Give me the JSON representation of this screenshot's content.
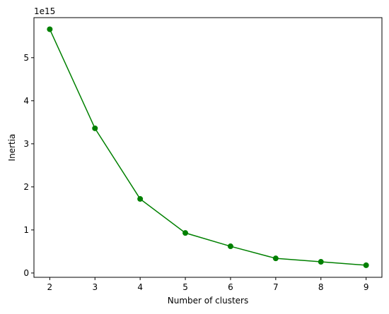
{
  "chart_data": {
    "type": "line",
    "x_label": "Number of clusters",
    "y_label": "Inertia",
    "y_offset_label": "1e15",
    "x": [
      2,
      3,
      4,
      5,
      6,
      7,
      8,
      9
    ],
    "series": [
      {
        "color": "#008000",
        "values": [
          5.66,
          3.36,
          1.72,
          0.93,
          0.62,
          0.34,
          0.26,
          0.18
        ]
      }
    ],
    "xlim": [
      1.65,
      9.35
    ],
    "xticks": [
      2,
      3,
      4,
      5,
      6,
      7,
      8,
      9
    ],
    "ylim": [
      -0.1,
      5.93
    ],
    "yticks": [
      0,
      1,
      2,
      3,
      4,
      5
    ],
    "marker": "circle"
  }
}
